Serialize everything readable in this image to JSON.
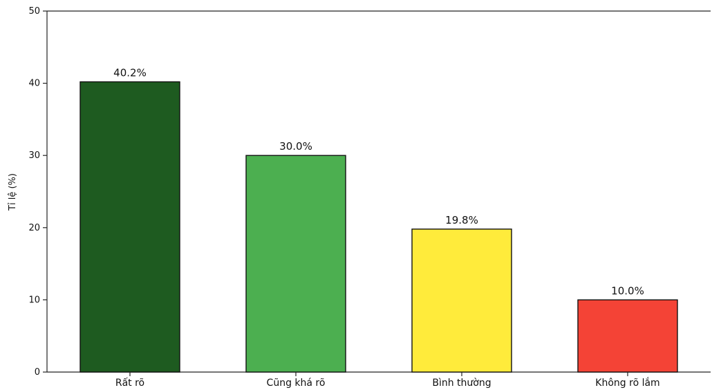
{
  "chart_data": {
    "type": "bar",
    "title": "",
    "xlabel": "",
    "ylabel": "Tỉ lệ (%)",
    "ylim": [
      0,
      50
    ],
    "yticks": [
      0,
      10,
      20,
      30,
      40,
      50
    ],
    "grid": false,
    "categories": [
      "Rất rõ",
      "Cũng khá rõ",
      "Bình thường",
      "Không rõ lắm"
    ],
    "values": [
      40.2,
      30.0,
      19.8,
      10.0
    ],
    "data_labels": [
      "40.2%",
      "30.0%",
      "19.8%",
      "10.0%"
    ],
    "colors": [
      "#1e5b20",
      "#4caf50",
      "#ffeb3b",
      "#f44336"
    ]
  }
}
